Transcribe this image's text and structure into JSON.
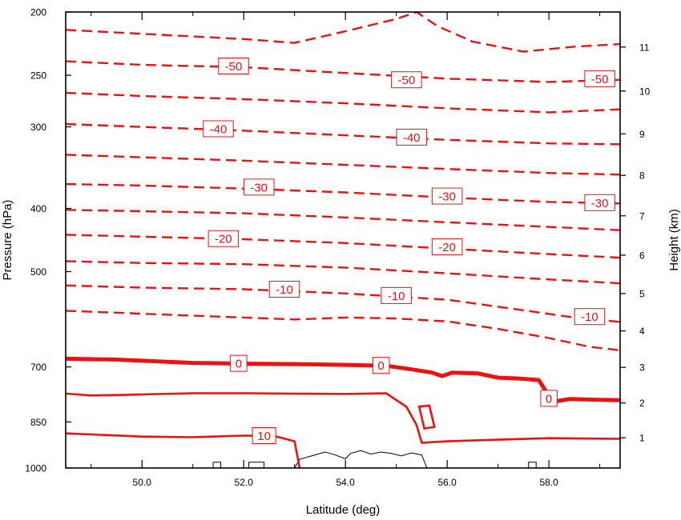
{
  "chart_data": {
    "type": "contour",
    "xlabel": "Latitude (deg)",
    "ylabel": "Pressure (hPa)",
    "ylabel_right": "Height (km)",
    "xlim": [
      48.5,
      59.4
    ],
    "ylim_pressure": [
      1000,
      200
    ],
    "x_ticks": [
      "50.0",
      "52.0",
      "54.0",
      "56.0",
      "58.0"
    ],
    "x_tick_values": [
      50,
      52,
      54,
      56,
      58
    ],
    "y_ticks": [
      {
        "value": 200,
        "label": "200"
      },
      {
        "value": 250,
        "label": "250"
      },
      {
        "value": 300,
        "label": "300"
      },
      {
        "value": 400,
        "label": "400"
      },
      {
        "value": 500,
        "label": "500"
      },
      {
        "value": 700,
        "label": "700"
      },
      {
        "value": 850,
        "label": "850"
      },
      {
        "value": 1000,
        "label": "1000"
      }
    ],
    "height_ticks": [
      "1",
      "2",
      "3",
      "4",
      "5",
      "6",
      "7",
      "8",
      "9",
      "10",
      "11"
    ],
    "contour_color": "#ee1111",
    "contour_interval": 5,
    "contours": [
      {
        "level": -55,
        "style": "dashed",
        "label": "",
        "points": [
          [
            48.5,
            213
          ],
          [
            52,
            220
          ],
          [
            53,
            223
          ],
          [
            54,
            214
          ],
          [
            55,
            205
          ],
          [
            55.4,
            200
          ],
          [
            55.8,
            210
          ],
          [
            56.5,
            222
          ],
          [
            57.5,
            230
          ],
          [
            58.5,
            226
          ],
          [
            59.4,
            224
          ]
        ]
      },
      {
        "level": -50,
        "style": "dashed",
        "label": "-50",
        "points": [
          [
            48.5,
            238
          ],
          [
            50,
            241
          ],
          [
            52,
            243
          ],
          [
            54,
            248
          ],
          [
            56,
            253
          ],
          [
            58,
            256
          ],
          [
            59.4,
            254
          ]
        ]
      },
      {
        "level": -45,
        "style": "dashed",
        "label": "",
        "points": [
          [
            48.5,
            266
          ],
          [
            50,
            269
          ],
          [
            52,
            272
          ],
          [
            54,
            276
          ],
          [
            56,
            281
          ],
          [
            58,
            285
          ],
          [
            59.4,
            282
          ]
        ]
      },
      {
        "level": -40,
        "style": "dashed",
        "label": "-40",
        "points": [
          [
            48.5,
            297
          ],
          [
            50,
            300
          ],
          [
            52,
            304
          ],
          [
            54,
            309
          ],
          [
            56,
            314
          ],
          [
            58,
            318
          ],
          [
            59.4,
            319
          ]
        ]
      },
      {
        "level": -35,
        "style": "dashed",
        "label": "",
        "points": [
          [
            48.5,
            331
          ],
          [
            50,
            334
          ],
          [
            52,
            338
          ],
          [
            54,
            343
          ],
          [
            56,
            348
          ],
          [
            58,
            353
          ],
          [
            59.4,
            355
          ]
        ]
      },
      {
        "level": -30,
        "style": "dashed",
        "label": "-30",
        "points": [
          [
            48.5,
            367
          ],
          [
            50,
            369
          ],
          [
            52,
            373
          ],
          [
            54,
            378
          ],
          [
            56,
            385
          ],
          [
            58,
            391
          ],
          [
            59.4,
            393
          ]
        ]
      },
      {
        "level": -25,
        "style": "dashed",
        "label": "",
        "points": [
          [
            48.5,
            402
          ],
          [
            50,
            404
          ],
          [
            52,
            407
          ],
          [
            54,
            413
          ],
          [
            56,
            420
          ],
          [
            58,
            427
          ],
          [
            59.4,
            432
          ]
        ]
      },
      {
        "level": -20,
        "style": "dashed",
        "label": "-20",
        "points": [
          [
            48.5,
            439
          ],
          [
            50,
            442
          ],
          [
            52,
            446
          ],
          [
            54,
            452
          ],
          [
            56,
            461
          ],
          [
            58,
            470
          ],
          [
            59.4,
            476
          ]
        ]
      },
      {
        "level": -15,
        "style": "dashed",
        "label": "",
        "points": [
          [
            48.5,
            482
          ],
          [
            50,
            485
          ],
          [
            52,
            487
          ],
          [
            54,
            493
          ],
          [
            56,
            503
          ],
          [
            58,
            514
          ],
          [
            59.4,
            521
          ]
        ]
      },
      {
        "level": -10,
        "style": "dashed",
        "label": "-10",
        "points": [
          [
            48.5,
            525
          ],
          [
            50,
            529
          ],
          [
            52,
            532
          ],
          [
            54,
            540
          ],
          [
            56,
            552
          ],
          [
            57.5,
            573
          ],
          [
            58.5,
            588
          ],
          [
            59.4,
            597
          ]
        ]
      },
      {
        "level": -5,
        "style": "dashed",
        "label": "",
        "points": [
          [
            48.5,
            574
          ],
          [
            50,
            580
          ],
          [
            52,
            588
          ],
          [
            53,
            592
          ],
          [
            54,
            588
          ],
          [
            55,
            590
          ],
          [
            56,
            596
          ],
          [
            57,
            612
          ],
          [
            58,
            632
          ],
          [
            58.8,
            652
          ],
          [
            59.4,
            660
          ]
        ]
      },
      {
        "level": 0,
        "style": "thick",
        "label": "0",
        "points": [
          [
            48.5,
            680
          ],
          [
            49.5,
            682
          ],
          [
            51,
            690
          ],
          [
            52,
            692
          ],
          [
            53,
            693
          ],
          [
            54,
            695
          ],
          [
            54.8,
            697
          ],
          [
            55.3,
            706
          ],
          [
            55.7,
            714
          ],
          [
            55.9,
            723
          ],
          [
            56.1,
            714
          ],
          [
            56.6,
            716
          ],
          [
            57,
            727
          ],
          [
            57.4,
            729
          ],
          [
            57.8,
            733
          ],
          [
            58.0,
            775
          ],
          [
            58.1,
            791
          ],
          [
            58.4,
            784
          ],
          [
            59,
            786
          ],
          [
            59.4,
            787
          ]
        ]
      },
      {
        "level": 5,
        "style": "solid",
        "label": "",
        "points": [
          [
            48.5,
            769
          ],
          [
            49,
            774
          ],
          [
            49.5,
            773
          ],
          [
            51,
            768
          ],
          [
            52,
            768
          ],
          [
            53,
            769
          ],
          [
            54,
            770
          ],
          [
            54.8,
            768
          ],
          [
            55.2,
            806
          ],
          [
            55.4,
            860
          ],
          [
            55.5,
            915
          ],
          [
            56,
            910
          ],
          [
            57,
            905
          ],
          [
            58,
            900
          ],
          [
            59.4,
            902
          ]
        ]
      },
      {
        "level": 10,
        "style": "solid",
        "label": "10",
        "points": [
          [
            48.5,
            885
          ],
          [
            50,
            895
          ],
          [
            51,
            897
          ],
          [
            52,
            892
          ],
          [
            52.6,
            893
          ],
          [
            53,
            910
          ],
          [
            53.1,
            1000
          ]
        ]
      }
    ],
    "closed_contours": [
      {
        "level": 5,
        "style": "solid",
        "points": [
          [
            55.45,
            805
          ],
          [
            55.65,
            802
          ],
          [
            55.75,
            865
          ],
          [
            55.55,
            870
          ],
          [
            55.45,
            805
          ]
        ]
      }
    ],
    "contour_labels": [
      {
        "text": "-50",
        "x": 51.8,
        "p": 242
      },
      {
        "text": "-50",
        "x": 55.2,
        "p": 254
      },
      {
        "text": "-50",
        "x": 59.0,
        "p": 253
      },
      {
        "text": "-40",
        "x": 51.5,
        "p": 302
      },
      {
        "text": "-40",
        "x": 55.3,
        "p": 311
      },
      {
        "text": "-30",
        "x": 52.3,
        "p": 371
      },
      {
        "text": "-30",
        "x": 56.0,
        "p": 383
      },
      {
        "text": "-30",
        "x": 59.0,
        "p": 392
      },
      {
        "text": "-20",
        "x": 51.6,
        "p": 445
      },
      {
        "text": "-20",
        "x": 56.0,
        "p": 458
      },
      {
        "text": "-10",
        "x": 52.8,
        "p": 532
      },
      {
        "text": "-10",
        "x": 55.0,
        "p": 544
      },
      {
        "text": "-10",
        "x": 58.8,
        "p": 586
      },
      {
        "text": "0",
        "x": 51.9,
        "p": 691
      },
      {
        "text": "0",
        "x": 54.7,
        "p": 696
      },
      {
        "text": "0",
        "x": 58.0,
        "p": 782
      },
      {
        "text": "10",
        "x": 52.4,
        "p": 892
      }
    ],
    "terrain": {
      "color": "#000000",
      "points": [
        [
          51.4,
          1000
        ],
        [
          51.4,
          980
        ],
        [
          51.55,
          980
        ],
        [
          51.55,
          1000
        ],
        [
          52.1,
          1000
        ],
        [
          52.1,
          980
        ],
        [
          52.4,
          980
        ],
        [
          52.4,
          1000
        ],
        [
          53.0,
          1000
        ],
        [
          53.1,
          970
        ],
        [
          53.3,
          960
        ],
        [
          53.6,
          945
        ],
        [
          53.8,
          955
        ],
        [
          54.0,
          968
        ],
        [
          54.1,
          950
        ],
        [
          54.3,
          940
        ],
        [
          54.5,
          952
        ],
        [
          54.7,
          945
        ],
        [
          54.9,
          950
        ],
        [
          55.1,
          958
        ],
        [
          55.3,
          948
        ],
        [
          55.5,
          955
        ],
        [
          55.6,
          1000
        ],
        [
          57.6,
          1000
        ],
        [
          57.6,
          980
        ],
        [
          57.75,
          980
        ],
        [
          57.75,
          1000
        ]
      ]
    }
  }
}
